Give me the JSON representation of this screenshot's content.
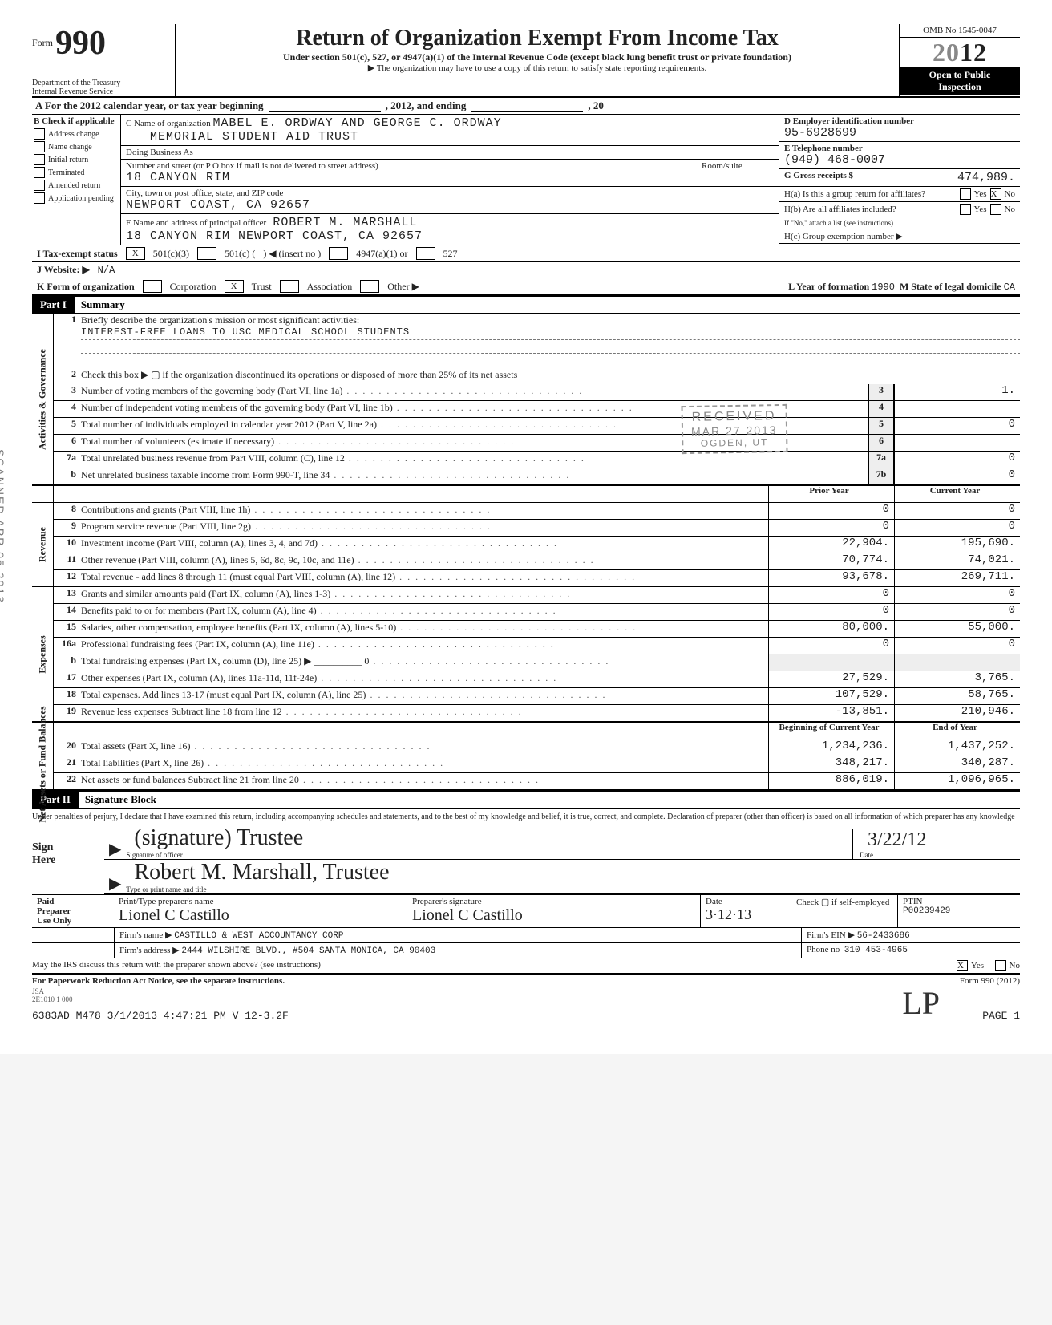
{
  "scan_side_text": "SCANNED APR 05 2013",
  "header": {
    "form_word": "Form",
    "form_number": "990",
    "dept1": "Department of the Treasury",
    "dept2": "Internal Revenue Service",
    "title": "Return of Organization Exempt From Income Tax",
    "subtitle": "Under section 501(c), 527, or 4947(a)(1) of the Internal Revenue Code (except black lung benefit trust or private foundation)",
    "arrow_note": "▶ The organization may have to use a copy of this return to satisfy state reporting requirements.",
    "omb": "OMB No 1545-0047",
    "year_outline": "20",
    "year_bold": "12",
    "open1": "Open to Public",
    "open2": "Inspection"
  },
  "lineA": {
    "prefix": "A For the 2012 calendar year, or tax year beginning",
    "mid": ", 2012, and ending",
    "suffix": ", 20"
  },
  "colB": {
    "header": "B Check if applicable",
    "items": [
      "Address change",
      "Name change",
      "Initial return",
      "Terminated",
      "Amended return",
      "Application pending"
    ]
  },
  "colC": {
    "c_label": "C Name of organization",
    "org_name1": "MABEL E. ORDWAY AND GEORGE C. ORDWAY",
    "org_name2": "MEMORIAL STUDENT AID TRUST",
    "dba_label": "Doing Business As",
    "street_label": "Number and street (or P O box if mail is not delivered to street address)",
    "room_label": "Room/suite",
    "street": "18 CANYON RIM",
    "city_label": "City, town or post office, state, and ZIP code",
    "city": "NEWPORT COAST, CA 92657",
    "f_label": "F Name and address of principal officer",
    "officer_name": "ROBERT M. MARSHALL",
    "officer_addr": "18 CANYON RIM NEWPORT COAST, CA 92657"
  },
  "colD": {
    "d_label": "D Employer identification number",
    "ein": "95-6928699",
    "e_label": "E Telephone number",
    "phone": "(949) 468-0007",
    "g_label": "G Gross receipts $",
    "g_value": "474,989.",
    "ha_label": "H(a) Is this a group return for affiliates?",
    "hb_label": "H(b) Are all affiliates included?",
    "hb_note": "If \"No,\" attach a list (see instructions)",
    "hc_label": "H(c) Group exemption number ▶",
    "yes": "Yes",
    "no": "No",
    "ha_checked": "X"
  },
  "rowI": {
    "label": "I    Tax-exempt status",
    "opt1": "501(c)(3)",
    "opt2": "501(c) (",
    "opt2b": ") ◀ (insert no )",
    "opt3": "4947(a)(1) or",
    "opt4": "527",
    "checked": "X"
  },
  "rowJ": {
    "label": "J    Website: ▶",
    "value": "N/A"
  },
  "rowK": {
    "label": "K    Form of organization",
    "opts": [
      "Corporation",
      "Trust",
      "Association",
      "Other ▶"
    ],
    "checked_idx": 1,
    "l_label": "L Year of formation",
    "l_value": "1990",
    "m_label": "M State of legal domicile",
    "m_value": "CA"
  },
  "part1": {
    "label": "Part I",
    "title": "Summary"
  },
  "sections": {
    "gov": "Activities & Governance",
    "rev": "Revenue",
    "exp": "Expenses",
    "net": "Net Assets or Fund Balances"
  },
  "gov_lines": {
    "l1": {
      "n": "1",
      "t": "Briefly describe the organization's mission or most significant activities:"
    },
    "mission": "INTEREST-FREE LOANS TO USC MEDICAL SCHOOL STUDENTS",
    "l2": {
      "n": "2",
      "t": "Check this box ▶ ▢ if the organization discontinued its operations or disposed of more than 25% of its net assets"
    },
    "l3": {
      "n": "3",
      "t": "Number of voting members of the governing body (Part VI, line 1a)",
      "box": "3",
      "val": "1."
    },
    "l4": {
      "n": "4",
      "t": "Number of independent voting members of the governing body (Part VI, line 1b)",
      "box": "4",
      "val": ""
    },
    "l5": {
      "n": "5",
      "t": "Total number of individuals employed in calendar year 2012 (Part V, line 2a)",
      "box": "5",
      "val": "0"
    },
    "l6": {
      "n": "6",
      "t": "Total number of volunteers (estimate if necessary)",
      "box": "6",
      "val": ""
    },
    "l7a": {
      "n": "7a",
      "t": "Total unrelated business revenue from Part VIII, column (C), line 12",
      "box": "7a",
      "val": "0"
    },
    "l7b": {
      "n": "b",
      "t": "Net unrelated business taxable income from Form 990-T, line 34",
      "box": "7b",
      "val": "0"
    }
  },
  "col_heads": {
    "prior": "Prior Year",
    "current": "Current Year"
  },
  "rev_lines": [
    {
      "n": "8",
      "t": "Contributions and grants (Part VIII, line 1h)",
      "p": "0",
      "c": "0"
    },
    {
      "n": "9",
      "t": "Program service revenue (Part VIII, line 2g)",
      "p": "0",
      "c": "0"
    },
    {
      "n": "10",
      "t": "Investment income (Part VIII, column (A), lines 3, 4, and 7d)",
      "p": "22,904.",
      "c": "195,690."
    },
    {
      "n": "11",
      "t": "Other revenue (Part VIII, column (A), lines 5, 6d, 8c, 9c, 10c, and 11e)",
      "p": "70,774.",
      "c": "74,021."
    },
    {
      "n": "12",
      "t": "Total revenue - add lines 8 through 11 (must equal Part VIII, column (A), line 12)",
      "p": "93,678.",
      "c": "269,711."
    }
  ],
  "exp_lines": [
    {
      "n": "13",
      "t": "Grants and similar amounts paid (Part IX, column (A), lines 1-3)",
      "p": "0",
      "c": "0"
    },
    {
      "n": "14",
      "t": "Benefits paid to or for members (Part IX, column (A), line 4)",
      "p": "0",
      "c": "0"
    },
    {
      "n": "15",
      "t": "Salaries, other compensation, employee benefits (Part IX, column (A), lines 5-10)",
      "p": "80,000.",
      "c": "55,000."
    },
    {
      "n": "16a",
      "t": "Professional fundraising fees (Part IX, column (A), line 11e)",
      "p": "0",
      "c": "0"
    },
    {
      "n": "b",
      "t": "Total fundraising expenses (Part IX, column (D), line 25) ▶  __________ 0",
      "p": "",
      "c": ""
    },
    {
      "n": "17",
      "t": "Other expenses (Part IX, column (A), lines 11a-11d, 11f-24e)",
      "p": "27,529.",
      "c": "3,765."
    },
    {
      "n": "18",
      "t": "Total expenses. Add lines 13-17 (must equal Part IX, column (A), line 25)",
      "p": "107,529.",
      "c": "58,765."
    },
    {
      "n": "19",
      "t": "Revenue less expenses  Subtract line 18 from line 12",
      "p": "-13,851.",
      "c": "210,946."
    }
  ],
  "net_heads": {
    "beg": "Beginning of Current Year",
    "end": "End of Year"
  },
  "net_lines": [
    {
      "n": "20",
      "t": "Total assets (Part X, line 16)",
      "p": "1,234,236.",
      "c": "1,437,252."
    },
    {
      "n": "21",
      "t": "Total liabilities (Part X, line 26)",
      "p": "348,217.",
      "c": "340,287."
    },
    {
      "n": "22",
      "t": "Net assets or fund balances  Subtract line 21 from line 20",
      "p": "886,019.",
      "c": "1,096,965."
    }
  ],
  "part2": {
    "label": "Part II",
    "title": "Signature Block"
  },
  "penalties": "Under penalties of perjury, I declare that I have examined this return, including accompanying schedules and statements, and to the best of my knowledge and belief, it is true, correct, and complete. Declaration of preparer (other than officer) is based on all information of which preparer has any knowledge",
  "sign": {
    "side_label1": "Sign",
    "side_label2": "Here",
    "sig_label": "Signature of officer",
    "sig_hand": "(signature) Trustee",
    "date_label": "Date",
    "date_hand": "3/22/12",
    "name_label": "Type or print name and title",
    "name_hand": "Robert M. Marshall, Trustee"
  },
  "preparer": {
    "side1": "Paid",
    "side2": "Preparer",
    "side3": "Use Only",
    "h1": "Print/Type preparer's name",
    "h2": "Preparer's signature",
    "h3": "Date",
    "h4": "Check ▢ if self-employed",
    "h5": "PTIN",
    "name_hand": "Lionel C Castillo",
    "sig_hand": "Lionel C Castillo",
    "date_hand": "3·12·13",
    "ptin": "P00239429",
    "firm_label": "Firm's name ▶",
    "firm": "CASTILLO & WEST ACCOUNTANCY CORP",
    "ein_label": "Firm's EIN ▶",
    "ein": "56-2433686",
    "addr_label": "Firm's address ▶",
    "addr": "2444 WILSHIRE BLVD., #504 SANTA MONICA, CA 90403",
    "phone_label": "Phone no",
    "phone": "310 453-4965"
  },
  "irs_line": {
    "text": "May the IRS discuss this return with the preparer shown above? (see instructions)",
    "yes": "Yes",
    "no": "No",
    "yes_checked": "X"
  },
  "footer": {
    "left": "For Paperwork Reduction Act Notice, see the separate instructions.",
    "right": "Form 990 (2012)",
    "jsa": "JSA",
    "code": "2E1010 1 000",
    "gen": "6383AD M478 3/1/2013   4:47:21 PM  V 12-3.2F",
    "page": "PAGE 1"
  },
  "stamp": {
    "s1": "RECEIVED",
    "s2": "MAR 27 2013",
    "s3": "OGDEN, UT",
    "side": "IRS-OSC"
  },
  "colors": {
    "ink": "#222222",
    "stamp": "#8a8a8a",
    "shade": "#eeeeee"
  }
}
